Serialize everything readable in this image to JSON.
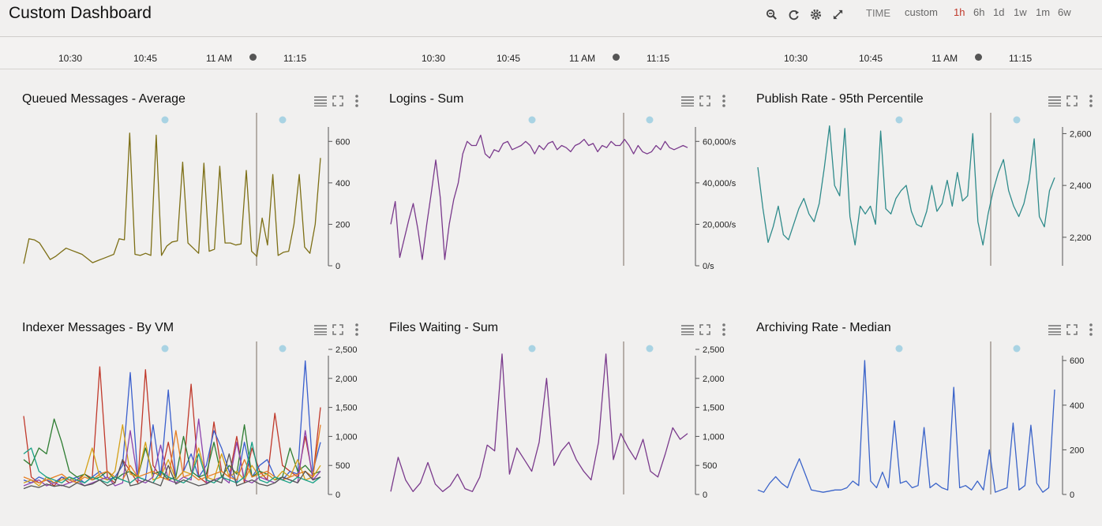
{
  "header": {
    "title": "Custom Dashboard",
    "time_label": "TIME",
    "ranges": [
      "custom",
      "1h",
      "6h",
      "1d",
      "1w",
      "1m",
      "6w"
    ],
    "active_range": "1h"
  },
  "timeline": {
    "ticks": [
      "10:30",
      "10:45",
      "11 AM",
      "11:15"
    ]
  },
  "panels": [
    {
      "title": "Queued Messages - Average",
      "chart_data": {
        "type": "line",
        "y_ticks": [
          "600",
          "400",
          "200",
          "0"
        ],
        "ylim": [
          0,
          700
        ],
        "series": [
          {
            "color": "#7d6f16",
            "values": [
              10,
              130,
              125,
              110,
              70,
              30,
              45,
              65,
              85,
              75,
              65,
              55,
              35,
              15,
              25,
              35,
              45,
              55,
              130,
              125,
              640,
              55,
              50,
              60,
              50,
              630,
              50,
              95,
              115,
              120,
              500,
              110,
              85,
              60,
              495,
              70,
              80,
              480,
              110,
              110,
              100,
              105,
              460,
              70,
              45,
              230,
              100,
              440,
              50,
              65,
              70,
              200,
              440,
              90,
              60,
              200,
              520
            ]
          }
        ]
      }
    },
    {
      "title": "Logins - Sum",
      "chart_data": {
        "type": "line",
        "y_ticks": [
          "60,000/s",
          "40,000/s",
          "20,000/s",
          "0/s"
        ],
        "ylim": [
          0,
          70000
        ],
        "series": [
          {
            "color": "#7a3a8c",
            "values": [
              20000,
              31000,
              4000,
              13000,
              22000,
              30000,
              18000,
              3000,
              20000,
              35000,
              51000,
              33000,
              3000,
              20000,
              32000,
              40000,
              54000,
              60000,
              58000,
              58000,
              63000,
              54000,
              52000,
              56000,
              55000,
              59000,
              60000,
              56000,
              57000,
              58000,
              60000,
              58000,
              54000,
              58000,
              56000,
              59000,
              60000,
              56000,
              58000,
              57000,
              55000,
              58000,
              59000,
              61000,
              58000,
              59000,
              55000,
              58000,
              57000,
              60000,
              58000,
              58000,
              61000,
              58000,
              54000,
              58000,
              55000,
              54000,
              55000,
              58000,
              56000,
              60000,
              57000,
              56000,
              57000,
              58000,
              57000
            ]
          }
        ]
      }
    },
    {
      "title": "Publish Rate - 95th Percentile",
      "chart_data": {
        "type": "line",
        "y_ticks": [
          "2,600",
          "2,400",
          "2,200"
        ],
        "ylim": [
          2090,
          2650
        ],
        "series": [
          {
            "color": "#2f8b8b",
            "values": [
              2470,
              2310,
              2180,
              2240,
              2320,
              2210,
              2190,
              2250,
              2310,
              2350,
              2290,
              2260,
              2330,
              2470,
              2630,
              2400,
              2360,
              2620,
              2280,
              2170,
              2320,
              2290,
              2320,
              2250,
              2610,
              2310,
              2290,
              2350,
              2380,
              2400,
              2300,
              2250,
              2240,
              2300,
              2400,
              2300,
              2330,
              2420,
              2320,
              2450,
              2340,
              2360,
              2600,
              2260,
              2170,
              2290,
              2380,
              2450,
              2500,
              2380,
              2320,
              2280,
              2330,
              2420,
              2580,
              2280,
              2240,
              2380,
              2430
            ]
          }
        ]
      }
    },
    {
      "title": "Indexer Messages - By VM",
      "chart_data": {
        "type": "line",
        "y_ticks": [
          "2,500",
          "2,000",
          "1,500",
          "1,000",
          "500",
          "0"
        ],
        "ylim": [
          0,
          2500
        ],
        "series": [
          {
            "color": "#c0392b",
            "values": [
              1350,
              300,
              200,
              250,
              150,
              300,
              200,
              250,
              350,
              280,
              2200,
              300,
              200,
              600,
              400,
              200,
              2150,
              500,
              300,
              900,
              250,
              400,
              1900,
              300,
              200,
              1250,
              400,
              300,
              1000,
              200,
              800,
              400,
              250,
              1400,
              500,
              400,
              300,
              1000,
              300,
              1500
            ]
          },
          {
            "color": "#3a5fcd",
            "values": [
              250,
              200,
              300,
              250,
              200,
              300,
              250,
              300,
              200,
              300,
              400,
              250,
              300,
              500,
              2100,
              300,
              250,
              1200,
              300,
              1800,
              250,
              400,
              700,
              300,
              500,
              1100,
              800,
              400,
              200,
              900,
              300,
              500,
              600,
              300,
              250,
              400,
              350,
              2300,
              400,
              900
            ]
          },
          {
            "color": "#2e7d32",
            "values": [
              600,
              500,
              800,
              700,
              1300,
              900,
              400,
              300,
              350,
              250,
              300,
              400,
              250,
              350,
              400,
              300,
              800,
              350,
              400,
              250,
              300,
              1000,
              400,
              300,
              350,
              900,
              300,
              500,
              350,
              1200,
              300,
              400,
              350,
              250,
              300,
              800,
              400,
              500,
              350,
              400
            ]
          },
          {
            "color": "#d4a017",
            "values": [
              200,
              250,
              150,
              300,
              200,
              250,
              300,
              200,
              350,
              800,
              300,
              250,
              400,
              1200,
              350,
              300,
              900,
              250,
              300,
              600,
              250,
              400,
              350,
              800,
              300,
              250,
              700,
              300,
              400,
              250,
              500,
              300,
              350,
              250,
              400,
              300,
              600,
              250,
              300,
              500
            ]
          },
          {
            "color": "#8e44ad",
            "values": [
              150,
              200,
              250,
              150,
              200,
              150,
              200,
              250,
              150,
              200,
              250,
              300,
              150,
              200,
              1100,
              250,
              200,
              300,
              850,
              250,
              200,
              300,
              250,
              1300,
              200,
              250,
              300,
              200,
              900,
              250,
              200,
              300,
              250,
              200,
              300,
              250,
              200,
              1100,
              250,
              400
            ]
          },
          {
            "color": "#e67e22",
            "values": [
              300,
              250,
              200,
              250,
              300,
              350,
              250,
              200,
              300,
              250,
              350,
              400,
              300,
              250,
              500,
              300,
              350,
              400,
              300,
              250,
              1100,
              300,
              350,
              250,
              300,
              350,
              400,
              300,
              250,
              600,
              300,
              350,
              400,
              300,
              250,
              300,
              350,
              400,
              300,
              1200
            ]
          },
          {
            "color": "#16a085",
            "values": [
              700,
              800,
              400,
              300,
              250,
              200,
              300,
              250,
              200,
              300,
              250,
              200,
              300,
              250,
              200,
              300,
              250,
              200,
              400,
              300,
              250,
              200,
              300,
              700,
              250,
              200,
              300,
              250,
              200,
              300,
              900,
              250,
              200,
              300,
              250,
              200,
              300,
              250,
              200,
              300
            ]
          },
          {
            "color": "#555555",
            "values": [
              100,
              150,
              120,
              180,
              140,
              160,
              120,
              200,
              150,
              180,
              250,
              150,
              200,
              600,
              150,
              180,
              250,
              200,
              150,
              500,
              180,
              250,
              200,
              150,
              180,
              250,
              200,
              700,
              150,
              200,
              250,
              180,
              150,
              200,
              300,
              250,
              200,
              400,
              250,
              300
            ]
          }
        ]
      }
    },
    {
      "title": "Files Waiting - Sum",
      "chart_data": {
        "type": "line",
        "y_ticks": [
          "2,500",
          "2,000",
          "1,500",
          "1,000",
          "500",
          "0"
        ],
        "ylim": [
          0,
          2500
        ],
        "series": [
          {
            "color": "#7a3a8c",
            "values": [
              50,
              640,
              250,
              50,
              200,
              550,
              180,
              50,
              150,
              350,
              100,
              50,
              300,
              850,
              750,
              2420,
              350,
              800,
              600,
              400,
              900,
              2000,
              500,
              750,
              900,
              600,
              400,
              250,
              900,
              2420,
              600,
              1050,
              800,
              600,
              950,
              400,
              300,
              700,
              1150,
              950,
              1050
            ]
          }
        ]
      }
    },
    {
      "title": "Archiving Rate - Median",
      "chart_data": {
        "type": "line",
        "y_ticks": [
          "600",
          "400",
          "200",
          "0"
        ],
        "ylim": [
          0,
          650
        ],
        "series": [
          {
            "color": "#3a63c9",
            "values": [
              20,
              10,
              50,
              80,
              50,
              30,
              100,
              160,
              90,
              20,
              15,
              10,
              15,
              20,
              20,
              30,
              60,
              40,
              600,
              60,
              30,
              100,
              30,
              330,
              50,
              60,
              30,
              40,
              300,
              30,
              50,
              30,
              20,
              480,
              30,
              40,
              20,
              60,
              20,
              200,
              10,
              20,
              30,
              320,
              20,
              40,
              310,
              50,
              10,
              30,
              470
            ]
          }
        ]
      }
    }
  ]
}
